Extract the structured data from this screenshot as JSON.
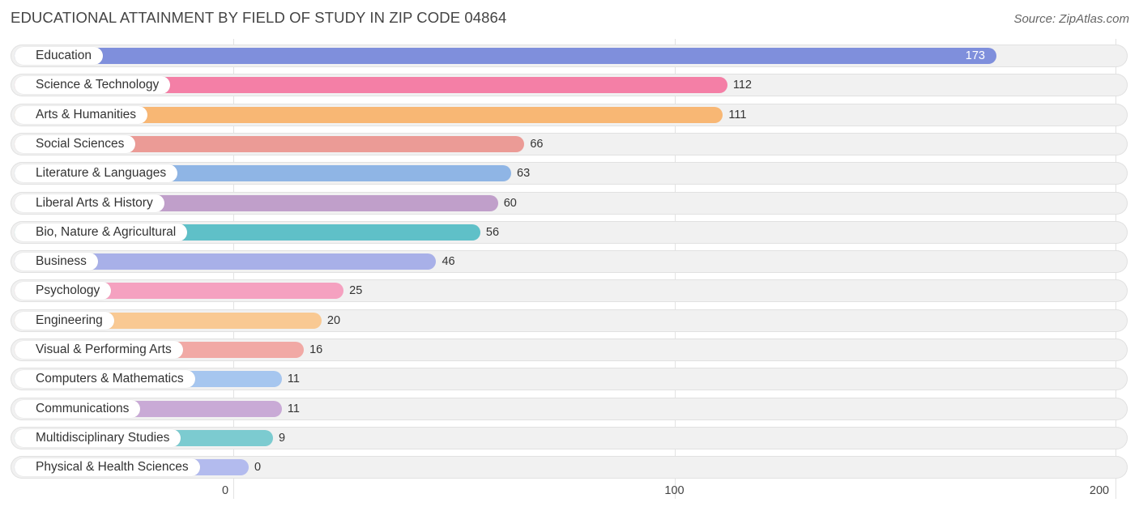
{
  "title": "EDUCATIONAL ATTAINMENT BY FIELD OF STUDY IN ZIP CODE 04864",
  "source": "Source: ZipAtlas.com",
  "chart_data": {
    "type": "bar",
    "orientation": "horizontal",
    "title": "EDUCATIONAL ATTAINMENT BY FIELD OF STUDY IN ZIP CODE 04864",
    "xlabel": "",
    "ylabel": "",
    "xlim": [
      0,
      200
    ],
    "ticks": [
      0,
      100,
      200
    ],
    "tick_labels": [
      "0",
      "100",
      "200"
    ],
    "categories": [
      "Education",
      "Science & Technology",
      "Arts & Humanities",
      "Social Sciences",
      "Literature & Languages",
      "Liberal Arts & History",
      "Bio, Nature & Agricultural",
      "Business",
      "Psychology",
      "Engineering",
      "Visual & Performing Arts",
      "Computers & Mathematics",
      "Communications",
      "Multidisciplinary Studies",
      "Physical & Health Sciences"
    ],
    "values": [
      173,
      112,
      111,
      66,
      63,
      60,
      56,
      46,
      25,
      20,
      16,
      11,
      11,
      9,
      0
    ],
    "value_labels": [
      "173",
      "112",
      "111",
      "66",
      "63",
      "60",
      "56",
      "46",
      "25",
      "20",
      "16",
      "11",
      "11",
      "9",
      "0"
    ],
    "colors": [
      "#7f8fdc",
      "#f47fa6",
      "#f8b774",
      "#eb9b96",
      "#8fb5e5",
      "#c09fca",
      "#5fc0c8",
      "#a8b0e8",
      "#f5a1c0",
      "#f9c993",
      "#f1a9a5",
      "#a6c6ef",
      "#c9aad6",
      "#7ccbd0",
      "#b3bbee"
    ]
  }
}
